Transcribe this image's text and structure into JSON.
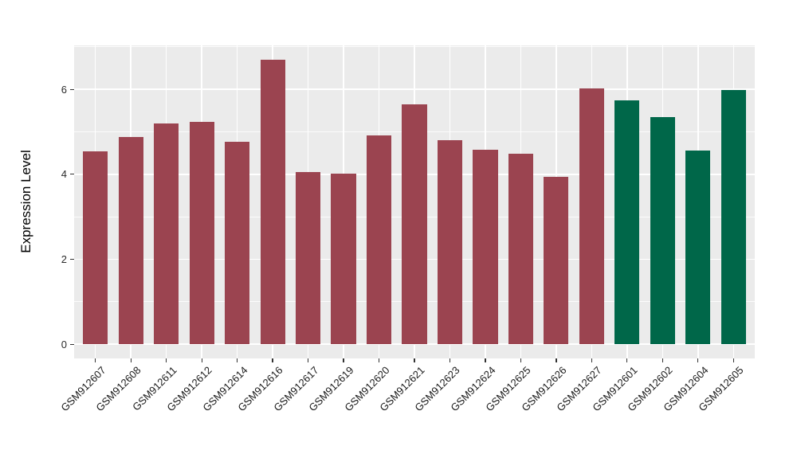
{
  "figure": {
    "y_axis_title": "Expression Level",
    "colors": {
      "panel_background": "#EBEBEB",
      "gridline": "#FFFFFF",
      "bar_red": "#9B4450",
      "bar_green": "#006749",
      "tick_mark": "#333333",
      "tick_text": "#2b2b2b",
      "axis_title_text": "#000000"
    }
  },
  "chart_data": {
    "type": "bar",
    "title": "",
    "xlabel": "",
    "ylabel": "Expression Level",
    "categories": [
      "GSM912607",
      "GSM912608",
      "GSM912611",
      "GSM912612",
      "GSM912614",
      "GSM912616",
      "GSM912617",
      "GSM912619",
      "GSM912620",
      "GSM912621",
      "GSM912623",
      "GSM912624",
      "GSM912625",
      "GSM912626",
      "GSM912627",
      "GSM912601",
      "GSM912602",
      "GSM912604",
      "GSM912605"
    ],
    "values": [
      4.54,
      4.87,
      5.2,
      5.23,
      4.76,
      6.7,
      4.05,
      4.01,
      4.91,
      5.64,
      4.8,
      4.58,
      4.48,
      3.95,
      6.02,
      5.74,
      5.34,
      4.56,
      5.98
    ],
    "bar_colors": [
      "#9B4450",
      "#9B4450",
      "#9B4450",
      "#9B4450",
      "#9B4450",
      "#9B4450",
      "#9B4450",
      "#9B4450",
      "#9B4450",
      "#9B4450",
      "#9B4450",
      "#9B4450",
      "#9B4450",
      "#9B4450",
      "#9B4450",
      "#006749",
      "#006749",
      "#006749",
      "#006749"
    ],
    "yticks": [
      0,
      2,
      4,
      6
    ],
    "minor_yticks": [
      1,
      3,
      5,
      7
    ],
    "ylim": [
      0,
      6.7
    ],
    "axis_expansion": 0.05,
    "bar_width_fraction": 0.7,
    "grid": true,
    "legend": false
  }
}
